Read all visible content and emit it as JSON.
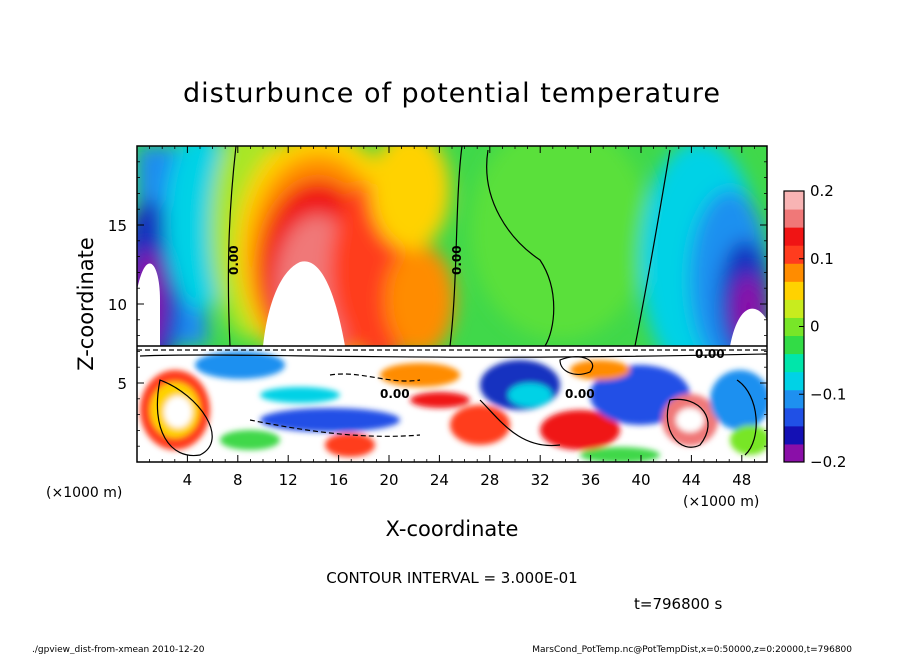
{
  "chart_data": {
    "type": "heatmap",
    "title": "disturbunce of potential temperature",
    "xlabel": "X-coordinate",
    "ylabel": "Z-coordinate",
    "x_unit_left": "(×1000 m)",
    "x_unit_right": "(×1000 m)",
    "xlim": [
      0,
      50
    ],
    "ylim": [
      0,
      20
    ],
    "xticks": [
      4,
      8,
      12,
      16,
      20,
      24,
      28,
      32,
      36,
      40,
      44,
      48
    ],
    "xtick_labels": [
      "4",
      "8",
      "12",
      "16",
      "20",
      "24",
      "28",
      "32",
      "36",
      "40",
      "44",
      "48"
    ],
    "yticks": [
      5,
      10,
      15
    ],
    "ytick_labels": [
      "5",
      "10",
      "15"
    ],
    "colorbar": {
      "min": -0.2,
      "max": 0.2,
      "ticks": [
        0.2,
        0.1,
        0,
        -0.1,
        -0.2
      ],
      "tick_labels": [
        "0.2",
        "0.1",
        "0",
        "−0.1",
        "−0.2"
      ],
      "colors": [
        "#8a0fa8",
        "#1410b4",
        "#2050e6",
        "#1e90f0",
        "#00d2e6",
        "#00e6aa",
        "#32dc46",
        "#78e628",
        "#c8ec1e",
        "#ffd200",
        "#ff8c00",
        "#ff3c1e",
        "#f01414",
        "#f07878",
        "#f8b4b4"
      ]
    },
    "contour_labels": [
      "0.00",
      "0.00",
      "0.00",
      "0.00",
      "0.00"
    ],
    "contour_interval_text": "CONTOUR INTERVAL = 3.000E-01",
    "time_text": "t=796800 s",
    "features_description_values": {
      "positive_max_center": [
        13.5,
        11
      ],
      "negative_max_centers": [
        [
          1,
          10
        ],
        [
          48.5,
          9
        ]
      ],
      "inversion_height": 7
    }
  },
  "footer": {
    "left": "./gpview_dist-from-xmean  2010-12-20",
    "right": "MarsCond_PotTemp.nc@PotTempDist,x=0:50000,z=0:20000,t=796800"
  },
  "colors": {
    "background": "#ffffff",
    "frame": "#000000"
  }
}
